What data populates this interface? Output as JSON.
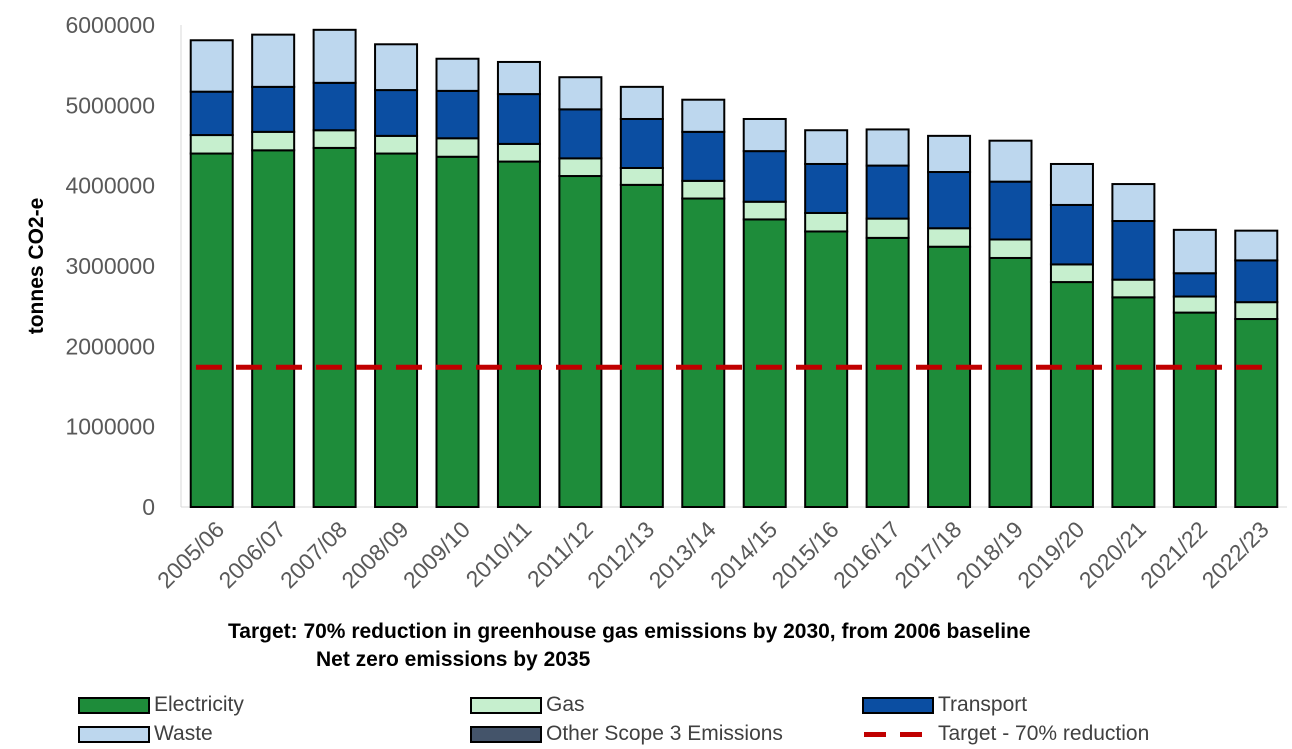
{
  "chart_data": {
    "type": "bar",
    "stacked": true,
    "ylabel": "tonnes CO2-e",
    "ylim": [
      0,
      6000000
    ],
    "yticks": [
      "0",
      "1000000",
      "2000000",
      "3000000",
      "4000000",
      "5000000",
      "6000000"
    ],
    "grid": false,
    "legend_position": "bottom",
    "categories": [
      "2005/06",
      "2006/07",
      "2007/08",
      "2008/09",
      "2009/10",
      "2010/11",
      "2011/12",
      "2012/13",
      "2013/14",
      "2014/15",
      "2015/16",
      "2016/17",
      "2017/18",
      "2018/19",
      "2019/20",
      "2020/21",
      "2021/22",
      "2022/23"
    ],
    "series": [
      {
        "name": "Electricity",
        "color": "#1e8c3a",
        "values": [
          4400000,
          4440000,
          4470000,
          4400000,
          4360000,
          4300000,
          4120000,
          4010000,
          3840000,
          3580000,
          3430000,
          3350000,
          3240000,
          3100000,
          2800000,
          2610000,
          2420000,
          2340000
        ]
      },
      {
        "name": "Gas",
        "color": "#c6efce",
        "values": [
          230000,
          230000,
          220000,
          220000,
          230000,
          220000,
          220000,
          210000,
          220000,
          220000,
          230000,
          240000,
          230000,
          230000,
          220000,
          220000,
          200000,
          210000
        ]
      },
      {
        "name": "Transport",
        "color": "#0b4ea2",
        "values": [
          540000,
          560000,
          590000,
          570000,
          590000,
          620000,
          610000,
          610000,
          610000,
          630000,
          610000,
          660000,
          700000,
          720000,
          740000,
          730000,
          290000,
          520000
        ]
      },
      {
        "name": "Waste",
        "color": "#bdd7ee",
        "values": [
          640000,
          650000,
          660000,
          570000,
          400000,
          400000,
          400000,
          400000,
          400000,
          400000,
          420000,
          450000,
          450000,
          510000,
          510000,
          460000,
          540000,
          370000
        ]
      },
      {
        "name": "Other Scope 3 Emissions",
        "color": "#44546a",
        "values": [
          0,
          0,
          0,
          0,
          0,
          0,
          0,
          0,
          0,
          0,
          0,
          0,
          0,
          0,
          0,
          0,
          0,
          0
        ]
      }
    ],
    "target_line": {
      "name": "Target - 70% reduction",
      "value": 1740000,
      "color": "#c00000",
      "style": "dashed"
    },
    "annotations": [
      "Target: 70% reduction in greenhouse gas emissions by 2030, from 2006 baseline",
      "Net zero emissions by 2035"
    ]
  }
}
